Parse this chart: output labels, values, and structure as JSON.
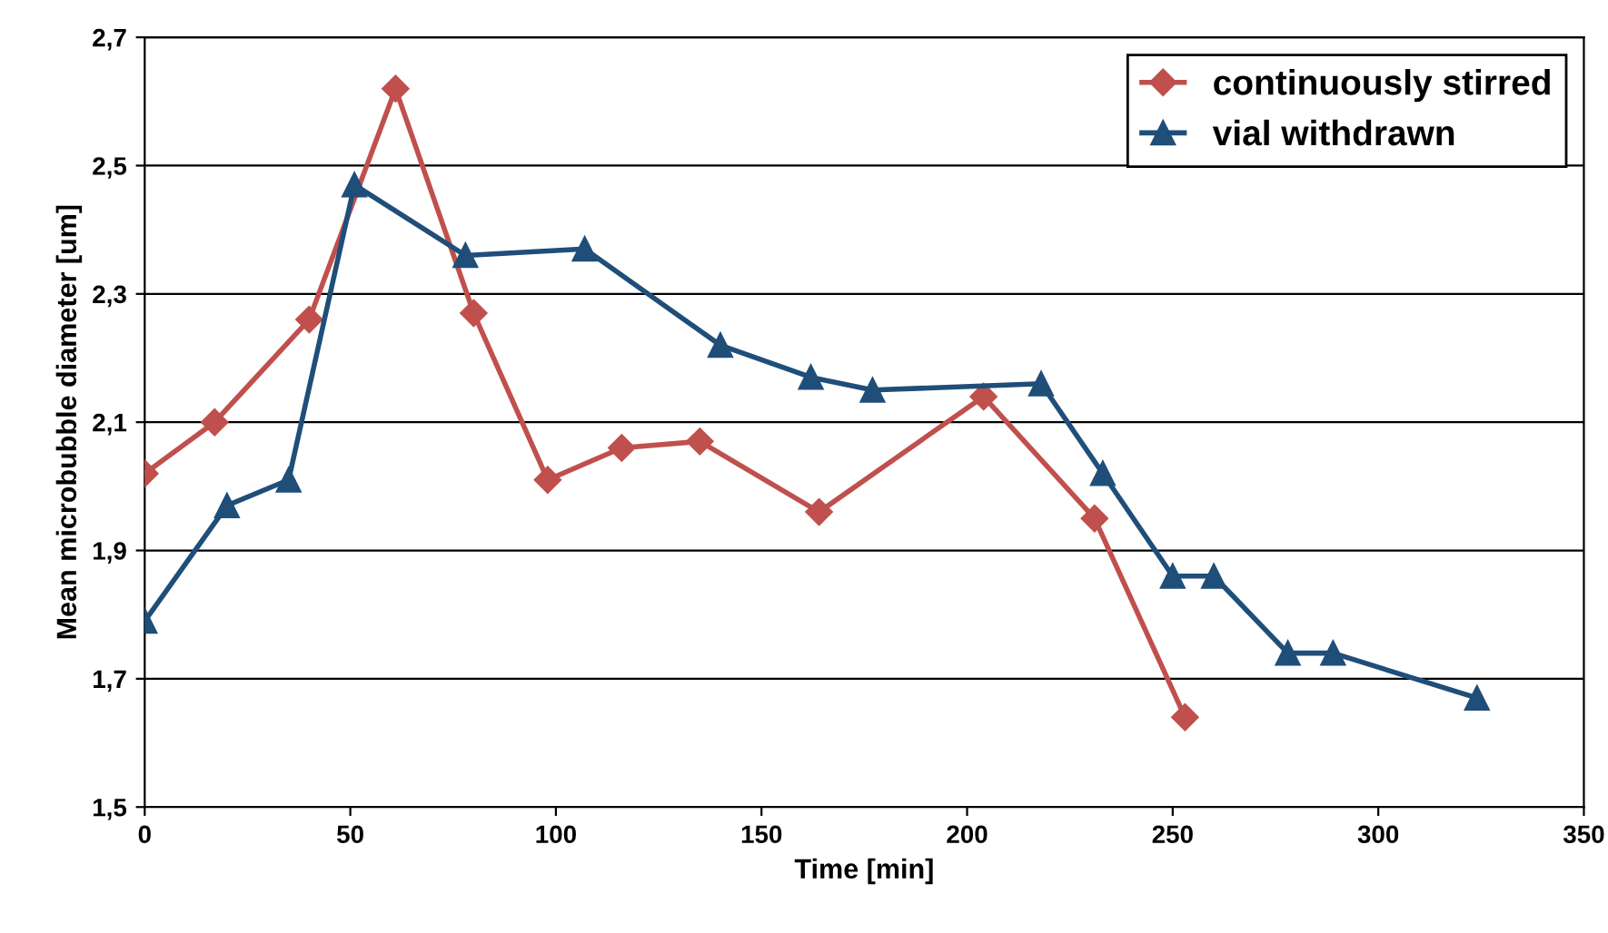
{
  "chart_data": {
    "type": "line",
    "xlabel": "Time [min]",
    "ylabel": "Mean microbubble diameter [um]",
    "xlim": [
      0,
      350
    ],
    "xticks": [
      0,
      50,
      100,
      150,
      200,
      250,
      300,
      350
    ],
    "ylim": [
      1.5,
      2.7
    ],
    "yticks": [
      {
        "value": 1.5,
        "label": "1,5"
      },
      {
        "value": 1.7,
        "label": "1,7"
      },
      {
        "value": 1.9,
        "label": "1,9"
      },
      {
        "value": 2.1,
        "label": "2,1"
      },
      {
        "value": 2.3,
        "label": "2,3"
      },
      {
        "value": 2.5,
        "label": "2,5"
      },
      {
        "value": 2.7,
        "label": "2,7"
      }
    ],
    "grid": "y",
    "legend": "top right",
    "line_style": "solid",
    "series": [
      {
        "name": "continuously stirred",
        "color": "#c0504d",
        "marker": "diamond",
        "x": [
          0,
          17,
          40,
          61,
          80,
          98,
          116,
          135,
          164,
          204,
          231,
          253
        ],
        "values": [
          2.02,
          2.1,
          2.26,
          2.62,
          2.27,
          2.01,
          2.06,
          2.07,
          1.96,
          2.14,
          1.95,
          1.64
        ]
      },
      {
        "name": "vial withdrawn",
        "color": "#1f4e79",
        "marker": "triangle",
        "x": [
          0,
          20,
          35,
          51,
          78,
          107,
          140,
          162,
          177,
          218,
          233,
          250,
          260,
          278,
          289,
          324
        ],
        "values": [
          1.79,
          1.97,
          2.01,
          2.47,
          2.36,
          2.37,
          2.22,
          2.17,
          2.15,
          2.16,
          2.02,
          1.86,
          1.86,
          1.74,
          1.74,
          1.67
        ]
      }
    ]
  }
}
